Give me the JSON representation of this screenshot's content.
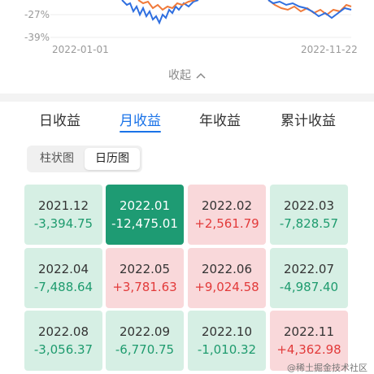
{
  "chart": {
    "y_labels": [
      "-27%",
      "-39%"
    ],
    "x_labels": [
      "2022-01-01",
      "2022-11-22"
    ],
    "series_colors": {
      "blue": "#2f6fe0",
      "orange": "#f07a3a"
    }
  },
  "collapse_label": "收起",
  "tabs": [
    {
      "label": "日收益",
      "active": false
    },
    {
      "label": "月收益",
      "active": true
    },
    {
      "label": "年收益",
      "active": false
    },
    {
      "label": "累计收益",
      "active": false
    }
  ],
  "view_toggle": [
    "柱状图",
    "日历图"
  ],
  "months": [
    {
      "month": "2021.12",
      "value": "-3,394.75",
      "state": "down"
    },
    {
      "month": "2022.01",
      "value": "-12,475.01",
      "state": "sel"
    },
    {
      "month": "2022.02",
      "value": "+2,561.79",
      "state": "up"
    },
    {
      "month": "2022.03",
      "value": "-7,828.57",
      "state": "down"
    },
    {
      "month": "2022.04",
      "value": "-7,488.64",
      "state": "down"
    },
    {
      "month": "2022.05",
      "value": "+3,781.63",
      "state": "up"
    },
    {
      "month": "2022.06",
      "value": "+9,024.58",
      "state": "up"
    },
    {
      "month": "2022.07",
      "value": "-4,987.40",
      "state": "down"
    },
    {
      "month": "2022.08",
      "value": "-3,056.37",
      "state": "down"
    },
    {
      "month": "2022.09",
      "value": "-6,770.75",
      "state": "down"
    },
    {
      "month": "2022.10",
      "value": "-1,010.32",
      "state": "down"
    },
    {
      "month": "2022.11",
      "value": "+4,362.98",
      "state": "up"
    }
  ],
  "watermark": "@稀土掘金技术社区"
}
